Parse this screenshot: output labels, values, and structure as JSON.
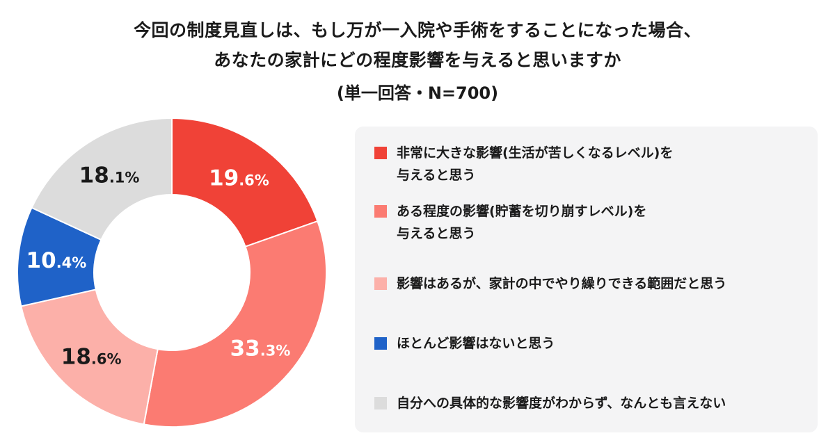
{
  "header": {
    "title_lines": [
      "今回の制度見直しは、もし万が一入院や手術をすることになった場合、",
      "あなたの家計にどの程度影響を与えると思いますか"
    ],
    "subtitle": "(単一回答・N=700)"
  },
  "chart_data": {
    "type": "pie",
    "title": "今回の制度見直しは、もし万が一入院や手術をすることになった場合、あなたの家計にどの程度影響を与えると思いますか",
    "subtitle": "(単一回答・N=700)",
    "unit": "%",
    "donut": true,
    "legend_position": "right",
    "slices": [
      {
        "label_lines": [
          "非常に大きな影響(生活が苦しくなるレベル)を",
          "与えると思う"
        ],
        "value": 19.6,
        "label_int": "19",
        "label_dec": ".6%",
        "color": "#f04237",
        "text_color": "#ffffff"
      },
      {
        "label_lines": [
          "ある程度の影響(貯蓄を切り崩すレベル)を",
          "与えると思う"
        ],
        "value": 33.3,
        "label_int": "33",
        "label_dec": ".3%",
        "color": "#fb7b72",
        "text_color": "#ffffff"
      },
      {
        "label_lines": [
          "影響はあるが、家計の中でやり繰りできる範囲だと思う"
        ],
        "value": 18.6,
        "label_int": "18",
        "label_dec": ".6%",
        "color": "#fcb0a9",
        "text_color": "#1a1a1a"
      },
      {
        "label_lines": [
          "ほとんど影響はないと思う"
        ],
        "value": 10.4,
        "label_int": "10",
        "label_dec": ".4%",
        "color": "#1f62c8",
        "text_color": "#ffffff"
      },
      {
        "label_lines": [
          "自分への具体的な影響度がわからず、なんとも言えない"
        ],
        "value": 18.1,
        "label_int": "18",
        "label_dec": ".1%",
        "color": "#dcdcdc",
        "text_color": "#1a1a1a"
      }
    ]
  }
}
